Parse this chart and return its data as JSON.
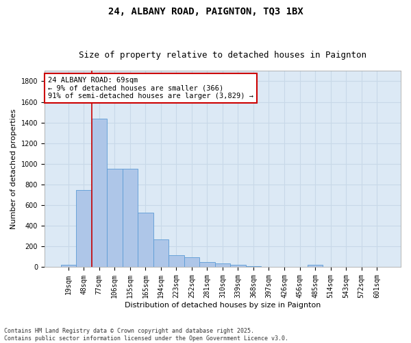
{
  "title": "24, ALBANY ROAD, PAIGNTON, TQ3 1BX",
  "subtitle": "Size of property relative to detached houses in Paignton",
  "xlabel": "Distribution of detached houses by size in Paignton",
  "ylabel": "Number of detached properties",
  "categories": [
    "19sqm",
    "48sqm",
    "77sqm",
    "106sqm",
    "135sqm",
    "165sqm",
    "194sqm",
    "223sqm",
    "252sqm",
    "281sqm",
    "310sqm",
    "339sqm",
    "368sqm",
    "397sqm",
    "426sqm",
    "456sqm",
    "485sqm",
    "514sqm",
    "543sqm",
    "572sqm",
    "601sqm"
  ],
  "values": [
    22,
    750,
    1440,
    950,
    950,
    530,
    270,
    115,
    95,
    48,
    35,
    22,
    8,
    5,
    5,
    5,
    22,
    5,
    5,
    5,
    5
  ],
  "bar_color": "#aec6e8",
  "bar_edge_color": "#5b9bd5",
  "grid_color": "#c8d8e8",
  "background_color": "#dce9f5",
  "vline_color": "#cc0000",
  "vline_x_index": 1.5,
  "annotation_text": "24 ALBANY ROAD: 69sqm\n← 9% of detached houses are smaller (366)\n91% of semi-detached houses are larger (3,829) →",
  "annotation_box_facecolor": "#ffffff",
  "annotation_border_color": "#cc0000",
  "ylim": [
    0,
    1900
  ],
  "yticks": [
    0,
    200,
    400,
    600,
    800,
    1000,
    1200,
    1400,
    1600,
    1800
  ],
  "footer": "Contains HM Land Registry data © Crown copyright and database right 2025.\nContains public sector information licensed under the Open Government Licence v3.0.",
  "title_fontsize": 10,
  "subtitle_fontsize": 9,
  "xlabel_fontsize": 8,
  "ylabel_fontsize": 8,
  "tick_fontsize": 7,
  "annotation_fontsize": 7.5,
  "footer_fontsize": 6
}
